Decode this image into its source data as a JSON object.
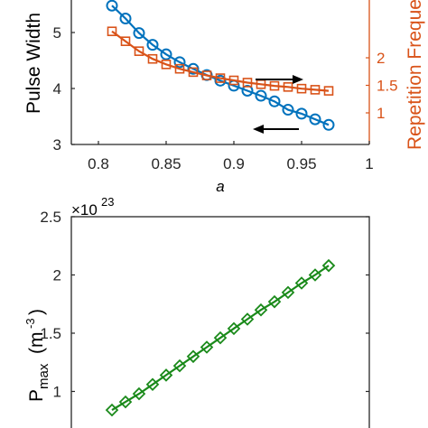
{
  "chart_data": [
    {
      "type": "line",
      "title": "",
      "xlabel": "a",
      "ylabel_left": "Pulse Width",
      "ylabel_right": "Repetition Freque",
      "xlim": [
        0.78,
        1.0
      ],
      "ylim_left": [
        3,
        5.5
      ],
      "ylim_right": [
        1,
        2.5
      ],
      "x_ticks": [
        "0.8",
        "0.85",
        "0.9",
        "0.95",
        "1"
      ],
      "y_ticks_left": [
        "3",
        "4",
        "5"
      ],
      "y_ticks_right": [
        "1",
        "1.5",
        "2"
      ],
      "grid": false,
      "colors": {
        "left_series": "#0072BD",
        "right_series": "#D95319",
        "arrows": "#000000"
      },
      "x": [
        0.81,
        0.82,
        0.83,
        0.84,
        0.85,
        0.86,
        0.87,
        0.88,
        0.89,
        0.9,
        0.91,
        0.92,
        0.93,
        0.94,
        0.95,
        0.96,
        0.97
      ],
      "series": [
        {
          "axis": "left",
          "marker": "circle",
          "values": [
            5.48,
            5.25,
            4.99,
            4.78,
            4.61,
            4.47,
            4.35,
            4.24,
            4.14,
            4.05,
            3.96,
            3.87,
            3.77,
            3.62,
            3.55,
            3.45,
            3.35
          ]
        },
        {
          "axis": "right",
          "marker": "square",
          "values": [
            2.48,
            2.3,
            2.12,
            1.98,
            1.88,
            1.8,
            1.74,
            1.68,
            1.63,
            1.59,
            1.55,
            1.52,
            1.49,
            1.47,
            1.44,
            1.42,
            1.4
          ]
        }
      ],
      "annotations": [
        {
          "type": "arrow",
          "direction": "right",
          "near_series": "right"
        },
        {
          "type": "arrow",
          "direction": "left",
          "near_series": "left"
        }
      ]
    },
    {
      "type": "line",
      "title": "",
      "xlabel": "",
      "ylabel": "P_max (m^-3)",
      "ylabel_main": "P",
      "ylabel_sub": "max",
      "ylabel_unit_open": "(m",
      "ylabel_unit_sup": "-3",
      "ylabel_unit_close": ")",
      "axis_exponent_base": "×10",
      "axis_exponent_power": "23",
      "ylim": [
        0.8,
        2.5
      ],
      "y_ticks": [
        "2.5",
        "2",
        "1.5",
        "1"
      ],
      "grid": false,
      "colors": {
        "series": "#1A8A1A"
      },
      "x": [
        0.81,
        0.82,
        0.83,
        0.84,
        0.85,
        0.86,
        0.87,
        0.88,
        0.89,
        0.9,
        0.91,
        0.92,
        0.93,
        0.94,
        0.95,
        0.96,
        0.97
      ],
      "series": [
        {
          "marker": "diamond",
          "values": [
            0.84,
            0.91,
            0.98,
            1.06,
            1.14,
            1.22,
            1.3,
            1.38,
            1.46,
            1.54,
            1.62,
            1.7,
            1.77,
            1.85,
            1.93,
            2.0,
            2.08
          ]
        }
      ]
    }
  ]
}
